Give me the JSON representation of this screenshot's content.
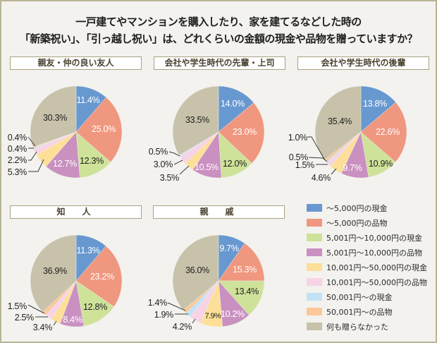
{
  "title": {
    "line1": "一戸建てやマンションを購入したり、家を建てるなどした時の",
    "line2": "「新築祝い」、「引っ越し祝い」は、どれくらいの金額の現金や品物を贈っていますか？"
  },
  "legend": {
    "items": [
      {
        "label": "～5,000円の現金",
        "color": "#6898d0"
      },
      {
        "label": "～5,000円の品物",
        "color": "#f0977f"
      },
      {
        "label": "5,001円～10,000円の現金",
        "color": "#cfe29a"
      },
      {
        "label": "5,001円～10,000円の品物",
        "color": "#c990c0"
      },
      {
        "label": "10,001円～50,000円の現金",
        "color": "#fddf98"
      },
      {
        "label": "10,001円～50,000円の品物",
        "color": "#f7d3e5"
      },
      {
        "label": "50,001円～の現金",
        "color": "#c2e3f6"
      },
      {
        "label": "50,001円～の品物",
        "color": "#fbc898"
      },
      {
        "label": "何も贈らなかった",
        "color": "#c8c2ab"
      }
    ]
  },
  "chart_data": [
    {
      "type": "pie",
      "title": "親友・仲の良い友人",
      "categories": [
        "～5,000円の現金",
        "～5,000円の品物",
        "5,001円～10,000円の現金",
        "5,001円～10,000円の品物",
        "10,001円～50,000円の現金",
        "10,001円～50,000円の品物",
        "50,001円～の現金",
        "50,001円～の品物",
        "何も贈らなかった"
      ],
      "values": [
        11.4,
        25.0,
        12.3,
        12.7,
        5.3,
        2.2,
        0.4,
        0.4,
        30.3
      ],
      "labels": [
        "11.4%",
        "25.0%",
        "12.3%",
        "12.7%",
        "5.3%",
        "2.2%",
        "0.4%",
        "0.4%",
        "30.3%"
      ]
    },
    {
      "type": "pie",
      "title": "会社や学生時代の先輩・上司",
      "categories": [
        "～5,000円の現金",
        "～5,000円の品物",
        "5,001円～10,000円の現金",
        "5,001円～10,000円の品物",
        "10,001円～50,000円の現金",
        "10,001円～50,000円の品物",
        "50,001円～の現金",
        "50,001円～の品物",
        "何も贈らなかった"
      ],
      "values": [
        14.0,
        23.0,
        12.0,
        10.5,
        3.5,
        3.0,
        0.5,
        0,
        33.5
      ],
      "labels": [
        "14.0%",
        "23.0%",
        "12.0%",
        "10.5%",
        "3.5%",
        "3.0%",
        "0.5%",
        null,
        "33.5%"
      ]
    },
    {
      "type": "pie",
      "title": "会社や学生時代の後輩",
      "categories": [
        "～5,000円の現金",
        "～5,000円の品物",
        "5,001円～10,000円の現金",
        "5,001円～10,000円の品物",
        "10,001円～50,000円の現金",
        "10,001円～50,000円の品物",
        "50,001円～の現金",
        "50,001円～の品物",
        "何も贈らなかった"
      ],
      "values": [
        13.8,
        22.6,
        10.9,
        9.7,
        4.6,
        1.5,
        0.5,
        1.0,
        35.4
      ],
      "labels": [
        "13.8%",
        "22.6%",
        "10.9%",
        "9.7%",
        "4.6%",
        "1.5%",
        "0.5%",
        "1.0%",
        "35.4%"
      ]
    },
    {
      "type": "pie",
      "title": "知　人",
      "categories": [
        "～5,000円の現金",
        "～5,000円の品物",
        "5,001円～10,000円の現金",
        "5,001円～10,000円の品物",
        "10,001円～50,000円の現金",
        "10,001円～50,000円の品物",
        "50,001円～の現金",
        "50,001円～の品物",
        "何も贈らなかった"
      ],
      "values": [
        11.3,
        23.2,
        12.8,
        8.4,
        3.4,
        2.5,
        0,
        1.5,
        36.9
      ],
      "labels": [
        "11.3%",
        "23.2%",
        "12.8%",
        "8.4%",
        "3.4%",
        "2.5%",
        null,
        "1.5%",
        "36.9%"
      ]
    },
    {
      "type": "pie",
      "title": "親　戚",
      "categories": [
        "～5,000円の現金",
        "～5,000円の品物",
        "5,001円～10,000円の現金",
        "5,001円～10,000円の品物",
        "10,001円～50,000円の現金",
        "10,001円～50,000円の品物",
        "50,001円～の現金",
        "50,001円～の品物",
        "何も贈らなかった"
      ],
      "values": [
        9.7,
        15.3,
        13.4,
        10.2,
        7.9,
        4.2,
        1.9,
        1.4,
        36.0
      ],
      "labels": [
        "9.7%",
        "15.3%",
        "13.4%",
        "10.2%",
        "7.9%",
        "4.2%",
        "1.9%",
        "1.4%",
        "36.0%"
      ]
    }
  ]
}
